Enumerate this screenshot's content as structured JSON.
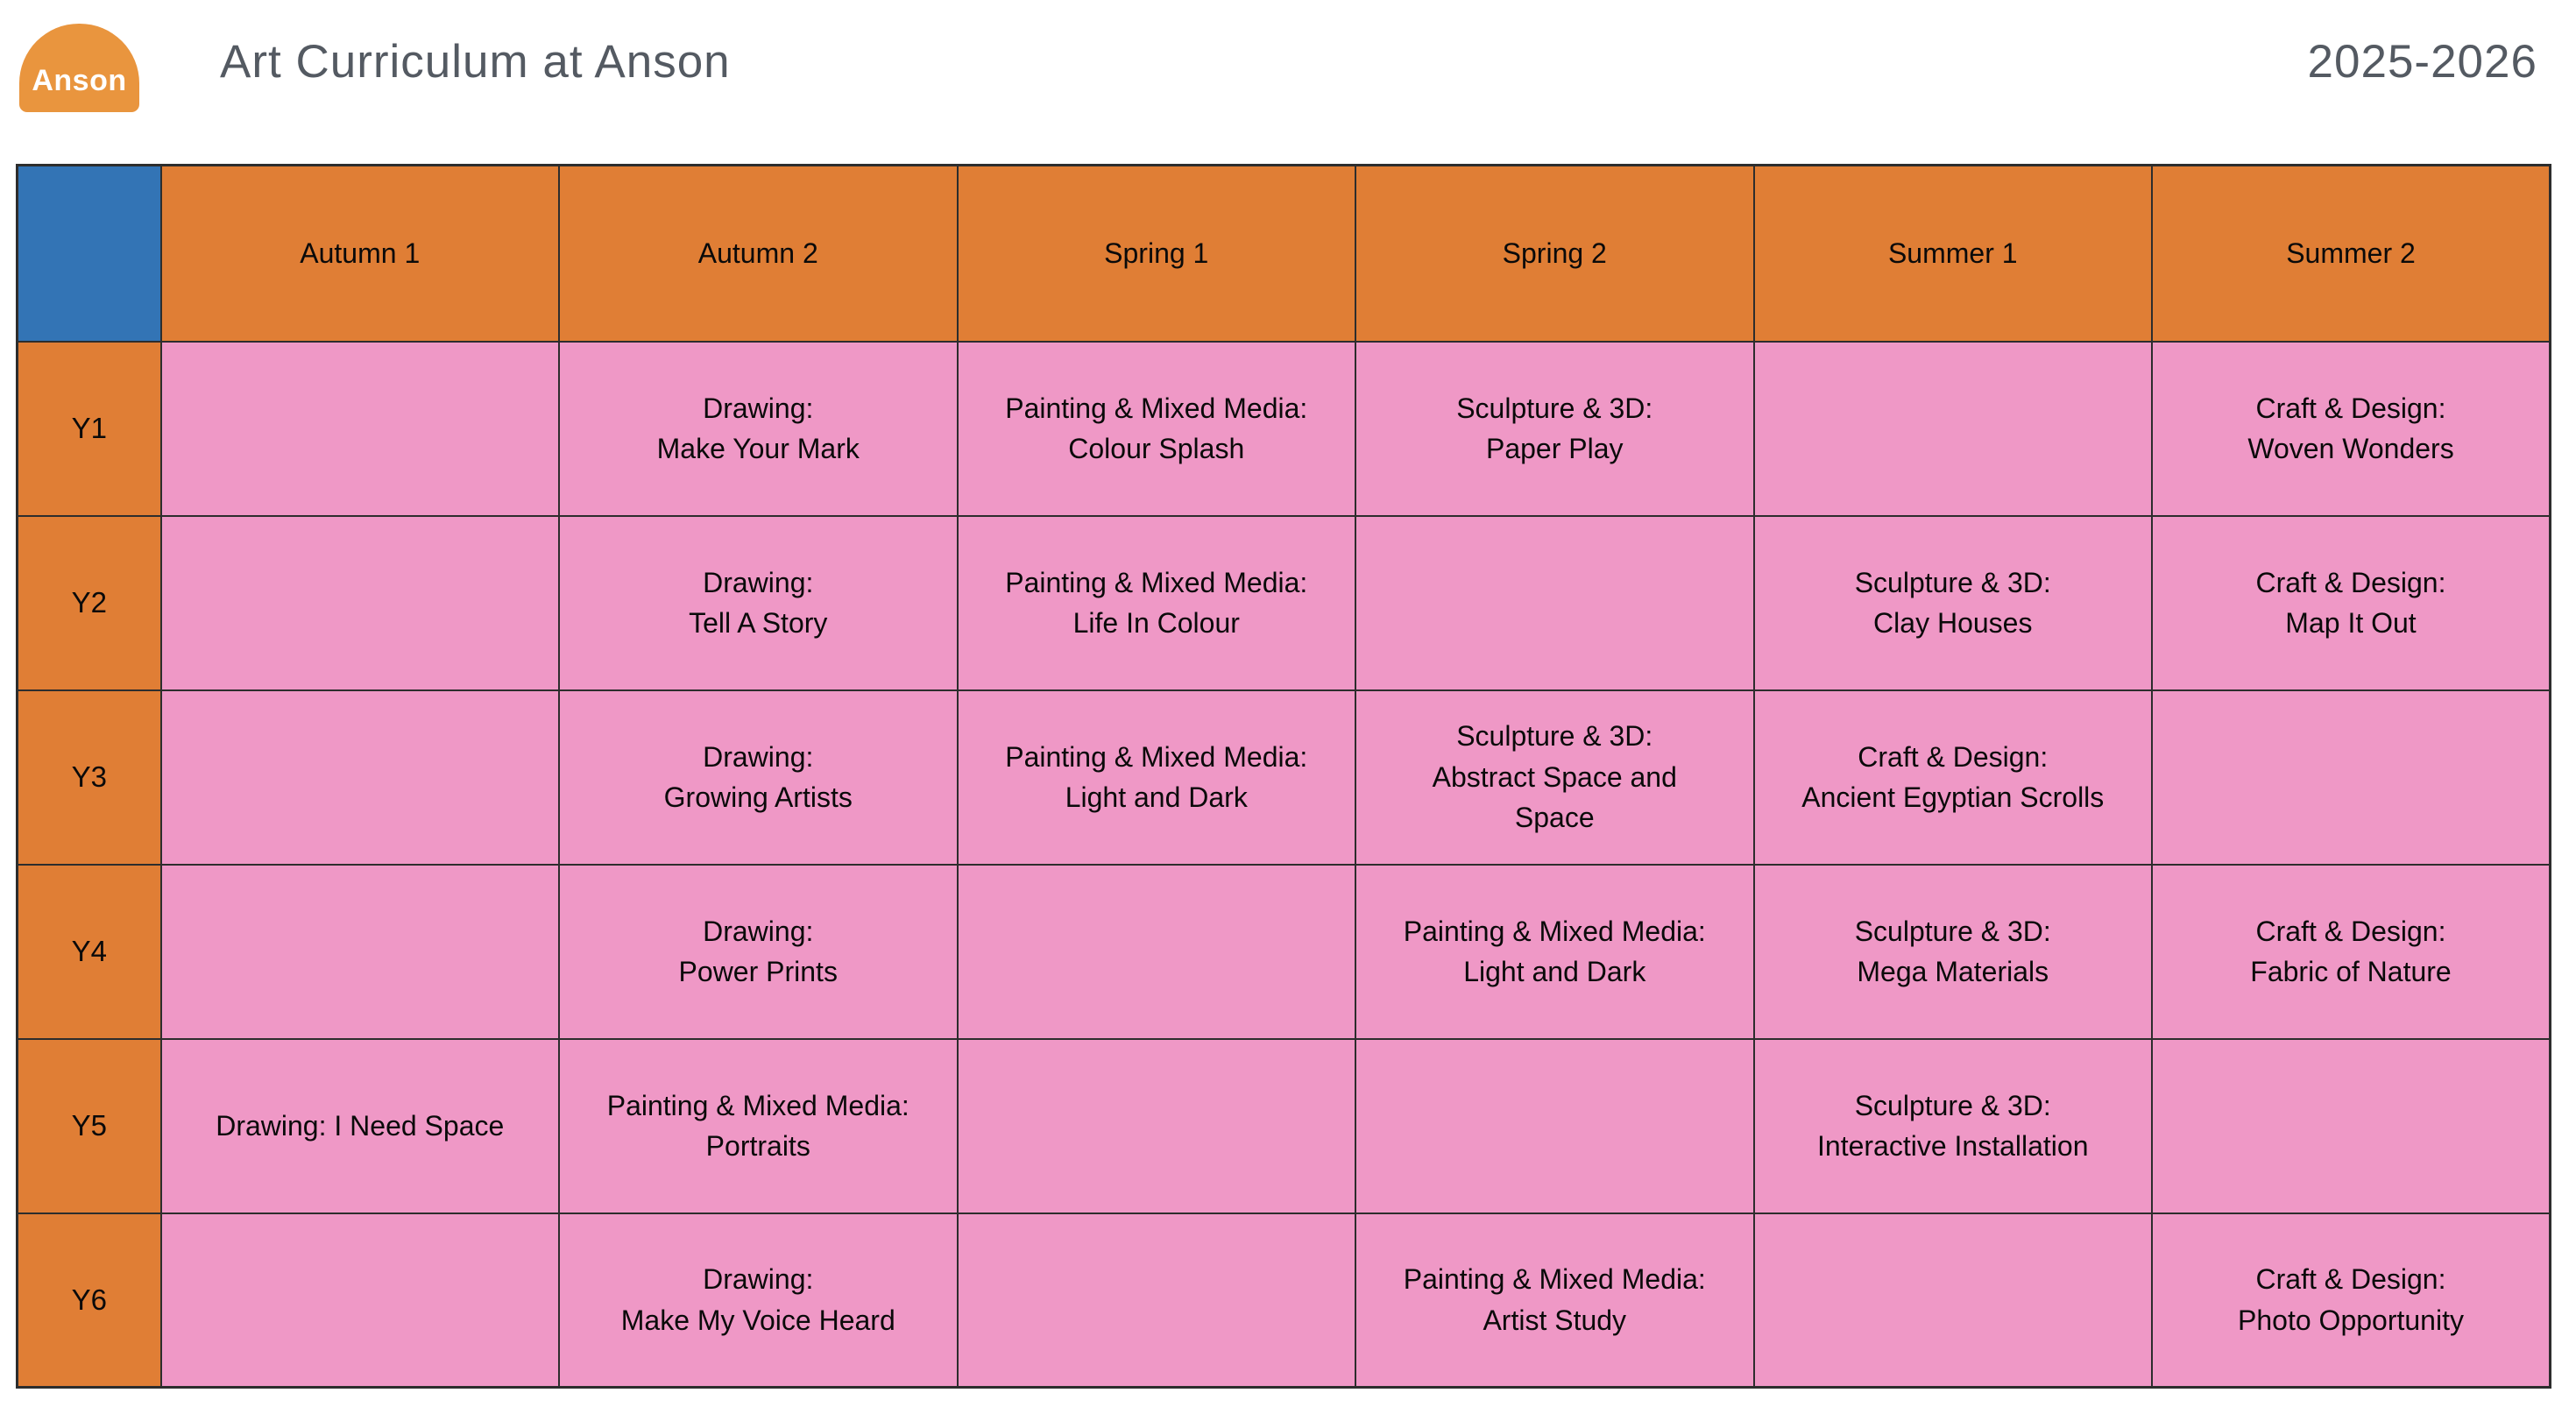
{
  "header": {
    "logo_text": "Anson",
    "title": "Art Curriculum at Anson",
    "year": "2025-2026"
  },
  "table": {
    "columns": [
      "Autumn 1",
      "Autumn 2",
      "Spring 1",
      "Spring 2",
      "Summer 1",
      "Summer 2"
    ],
    "rows": [
      {
        "label": "Y1",
        "cells": [
          "",
          "Drawing:\nMake Your Mark",
          "Painting & Mixed Media:\nColour Splash",
          "Sculpture & 3D:\nPaper Play",
          "",
          "Craft & Design:\nWoven Wonders"
        ]
      },
      {
        "label": "Y2",
        "cells": [
          "",
          "Drawing:\nTell A Story",
          "Painting & Mixed Media:\nLife In Colour",
          "",
          "Sculpture & 3D:\nClay Houses",
          "Craft & Design:\nMap It Out"
        ]
      },
      {
        "label": "Y3",
        "cells": [
          "",
          "Drawing:\nGrowing Artists",
          "Painting & Mixed Media:\nLight and Dark",
          "Sculpture & 3D:\nAbstract Space and\nSpace",
          "Craft & Design:\nAncient Egyptian Scrolls",
          ""
        ]
      },
      {
        "label": "Y4",
        "cells": [
          "",
          "Drawing:\nPower Prints",
          "",
          "Painting & Mixed Media:\nLight and Dark",
          "Sculpture & 3D:\nMega Materials",
          "Craft & Design:\nFabric of Nature"
        ]
      },
      {
        "label": "Y5",
        "cells": [
          "Drawing: I Need Space",
          "Painting & Mixed Media:\nPortraits",
          "",
          "",
          "Sculpture & 3D:\nInteractive Installation",
          ""
        ]
      },
      {
        "label": "Y6",
        "cells": [
          "",
          "Drawing:\nMake My Voice Heard",
          "",
          "Painting & Mixed Media:\nArtist Study",
          "",
          "Craft & Design:\nPhoto Opportunity"
        ]
      }
    ]
  },
  "colors": {
    "term_header_orange": "#E07E35",
    "logo_orange": "#E9953E",
    "cell_pink": "#EF98C6",
    "corner_blue": "#3374B5",
    "title_text": "#545A62",
    "border": "#2D2D2D"
  }
}
